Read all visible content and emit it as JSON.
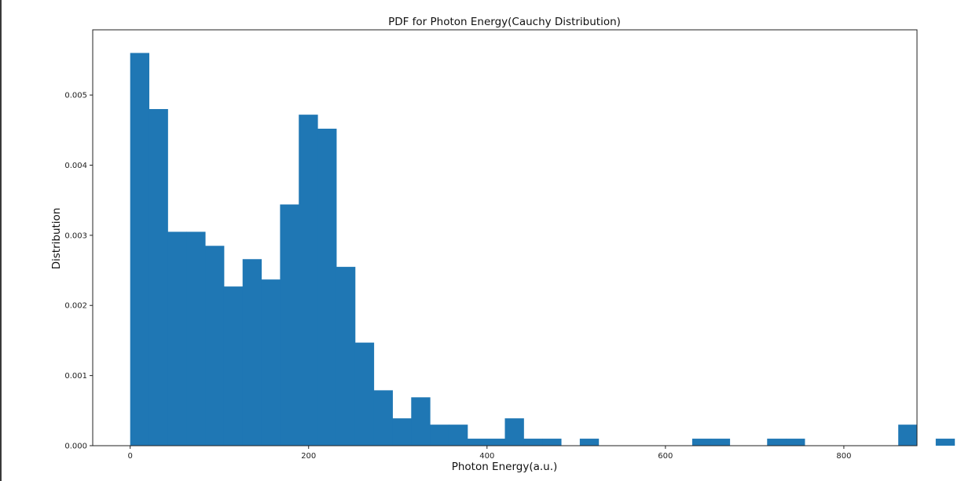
{
  "chart_data": {
    "type": "bar",
    "title": "PDF for Photon Energy(Cauchy Distribution)",
    "xlabel": "Photon Energy(a.u.)",
    "ylabel": "Distribution",
    "xlim": [
      -42,
      882
    ],
    "ylim": [
      0,
      0.00593
    ],
    "xticks": [
      0,
      200,
      400,
      600,
      800
    ],
    "xtick_labels": [
      "0",
      "200",
      "400",
      "600",
      "800"
    ],
    "yticks": [
      0,
      0.001,
      0.002,
      0.003,
      0.004,
      0.005
    ],
    "ytick_labels": [
      "0.000",
      "0.001",
      "0.002",
      "0.003",
      "0.004",
      "0.005"
    ],
    "grid": false,
    "bar_color": "#1f77b4",
    "bin_start": 0,
    "bin_width": 21,
    "values": [
      0.0056,
      0.0048,
      0.00305,
      0.00305,
      0.00285,
      0.00227,
      0.00266,
      0.00237,
      0.00344,
      0.00472,
      0.00452,
      0.00255,
      0.00147,
      0.00079,
      0.00039,
      0.00069,
      0.0003,
      0.0003,
      0.0001,
      0.0001,
      0.00039,
      0.0001,
      0.0001,
      0,
      0.0001,
      0,
      0,
      0,
      0,
      0,
      0.0001,
      0.0001,
      0,
      0,
      0.0001,
      0.0001,
      0,
      0,
      0,
      0,
      0,
      0.0003,
      0,
      0.0001
    ]
  }
}
